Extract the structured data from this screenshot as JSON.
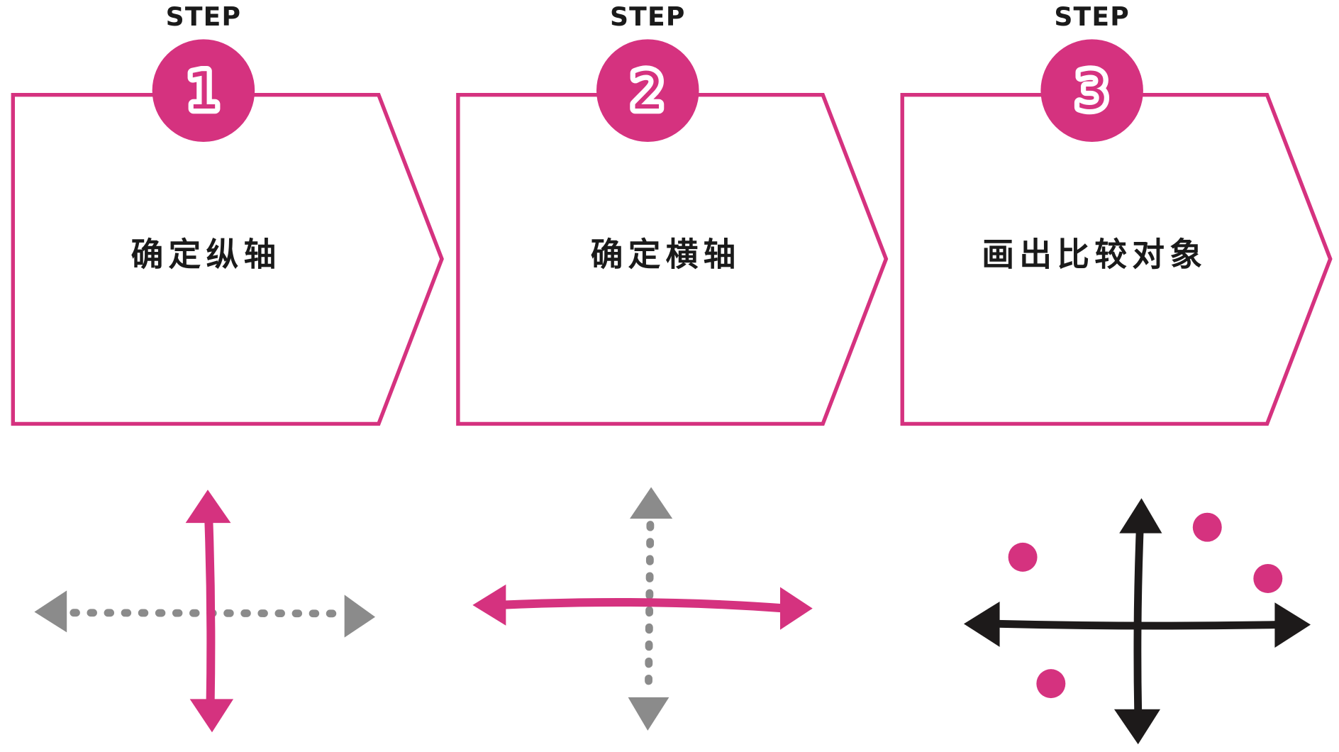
{
  "colors": {
    "accent": "#d5327f",
    "secondary_grey": "#8b8b8b",
    "ink": "#1d1a1a",
    "background": "#ffffff"
  },
  "steps": [
    {
      "label": "STEP",
      "number": "1",
      "title": "确定纵轴",
      "illustration_icon": "vertical-axis-highlighted-icon"
    },
    {
      "label": "STEP",
      "number": "2",
      "title": "确定横轴",
      "illustration_icon": "horizontal-axis-highlighted-icon"
    },
    {
      "label": "STEP",
      "number": "3",
      "title": "画出比较对象",
      "illustration_icon": "axes-with-points-icon"
    }
  ]
}
